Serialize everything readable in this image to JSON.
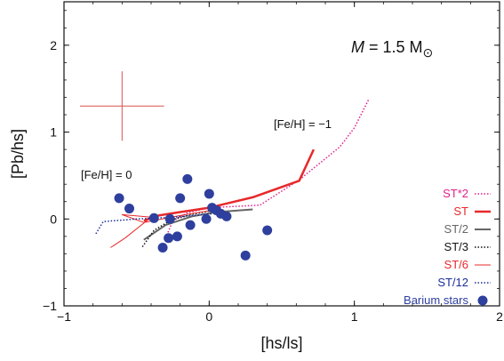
{
  "chart_data": {
    "type": "scatter",
    "xlabel": "[hs/ls]",
    "ylabel": "[Pb/hs]",
    "xlim": [
      -1,
      2
    ],
    "ylim": [
      -1,
      2.5
    ],
    "xticks": [
      -1,
      0,
      1,
      2
    ],
    "yticks": [
      -1,
      0,
      1,
      2
    ],
    "xtick_labels": [
      "−1",
      "0",
      "1",
      "2"
    ],
    "ytick_labels": [
      "−1",
      "0",
      "1",
      "2"
    ],
    "grid": false,
    "legend_position": "bottom-right",
    "mass_label": {
      "prefix": "M",
      "middle": " = 1.5 M",
      "sun": "⊙"
    },
    "annotations": [
      {
        "text": "[Fe/H] = −1",
        "x": 0.44,
        "y": 1.1
      },
      {
        "text": "[Fe/H] = 0",
        "x": -0.9,
        "y": 0.46
      }
    ],
    "error_bar": {
      "x": -0.6,
      "y": 1.3,
      "xerr": 0.29,
      "yerr": 0.4,
      "color": "#d9534f"
    },
    "series": [
      {
        "name": "ST*2",
        "color": "#e0218a",
        "style": "dotted",
        "width": 1.5,
        "x": [
          -0.3,
          -0.25,
          -0.15,
          0.0,
          0.35,
          0.62,
          0.9,
          1.0,
          1.1
        ],
        "y": [
          -0.22,
          -0.02,
          0.07,
          0.13,
          0.16,
          0.45,
          0.83,
          1.05,
          1.38
        ]
      },
      {
        "name": "ST",
        "color": "#e8282b",
        "style": "solid",
        "width": 2.5,
        "x": [
          -0.45,
          -0.35,
          -0.2,
          0.0,
          0.3,
          0.62,
          0.72
        ],
        "y": [
          -0.02,
          0.04,
          0.08,
          0.13,
          0.25,
          0.44,
          0.8
        ]
      },
      {
        "name": "ST/2",
        "color": "#666666",
        "style": "solid",
        "width": 2,
        "x": [
          -0.45,
          -0.3,
          -0.12,
          0.05,
          0.3
        ],
        "y": [
          -0.24,
          -0.07,
          0.03,
          0.08,
          0.11
        ]
      },
      {
        "name": "ST/3",
        "color": "#111111",
        "style": "dotted",
        "width": 1.5,
        "x": [
          -0.46,
          -0.38,
          -0.26,
          -0.1,
          0.03
        ],
        "y": [
          -0.32,
          -0.13,
          -0.01,
          0.06,
          0.1
        ]
      },
      {
        "name": "ST/6",
        "color": "#e8282b",
        "style": "solid",
        "width": 1,
        "x": [
          -0.68,
          -0.58,
          -0.4,
          -0.6,
          -0.45,
          -0.2,
          0.02
        ],
        "y": [
          -0.33,
          -0.22,
          0.02,
          0.05,
          -0.04,
          0.04,
          0.1
        ]
      },
      {
        "name": "ST/12",
        "color": "#1a2e9a",
        "style": "dotted",
        "width": 1.5,
        "x": [
          -0.78,
          -0.73,
          -0.5,
          -0.25,
          -0.05,
          0.02
        ],
        "y": [
          -0.17,
          -0.03,
          0.0,
          0.02,
          0.05,
          0.06
        ]
      },
      {
        "name": "Barium stars",
        "color": "#2e3f9e",
        "style": "marker",
        "x": [
          -0.62,
          -0.55,
          -0.38,
          -0.32,
          -0.28,
          -0.27,
          -0.22,
          -0.2,
          -0.15,
          -0.13,
          -0.02,
          0.0,
          0.02,
          0.05,
          0.08,
          0.12,
          0.25,
          0.4
        ],
        "y": [
          0.24,
          0.12,
          0.01,
          -0.33,
          -0.22,
          0.0,
          -0.2,
          0.24,
          0.46,
          -0.07,
          0.0,
          0.29,
          0.13,
          0.1,
          0.06,
          0.03,
          -0.42,
          -0.13
        ]
      }
    ]
  }
}
